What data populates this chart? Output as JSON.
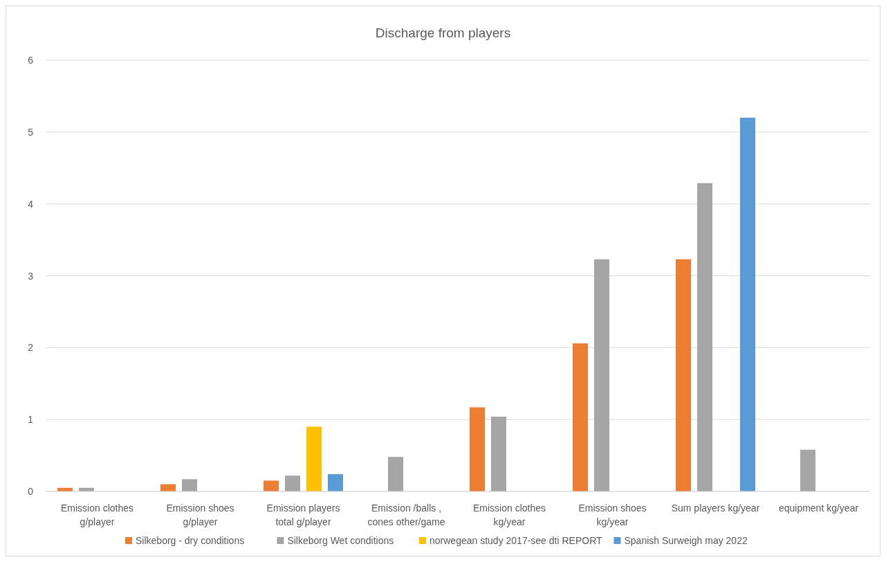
{
  "chart_data": {
    "type": "bar",
    "title": "Discharge from players",
    "categories": [
      "Emission clothes g/player",
      "Emission shoes g/player",
      "Emission players total g/player",
      "Emission /balls , cones other/game",
      "Emission clothes kg/year",
      "Emission shoes kg/year",
      "Sum players kg/year",
      "equipment kg/year"
    ],
    "series": [
      {
        "name": "Silkeborg - dry conditions",
        "color": "#ed7d31",
        "values": [
          0.05,
          0.1,
          0.15,
          null,
          1.17,
          2.06,
          3.23,
          null
        ]
      },
      {
        "name": "Silkeborg Wet conditions",
        "color": "#a5a5a5",
        "values": [
          0.05,
          0.17,
          0.22,
          0.48,
          1.04,
          3.23,
          4.29,
          0.58
        ]
      },
      {
        "name": "norwegean study 2017-see dti REPORT",
        "color": "#ffc000",
        "values": [
          null,
          null,
          0.9,
          null,
          null,
          null,
          null,
          null
        ]
      },
      {
        "name": "Spanish Surweigh may 2022",
        "color": "#5b9bd5",
        "values": [
          null,
          null,
          0.24,
          null,
          null,
          null,
          5.2,
          null
        ]
      }
    ],
    "ylim": [
      0,
      6
    ],
    "yticks": [
      0,
      1,
      2,
      3,
      4,
      5,
      6
    ],
    "grid": "y",
    "legend": "bottom"
  }
}
